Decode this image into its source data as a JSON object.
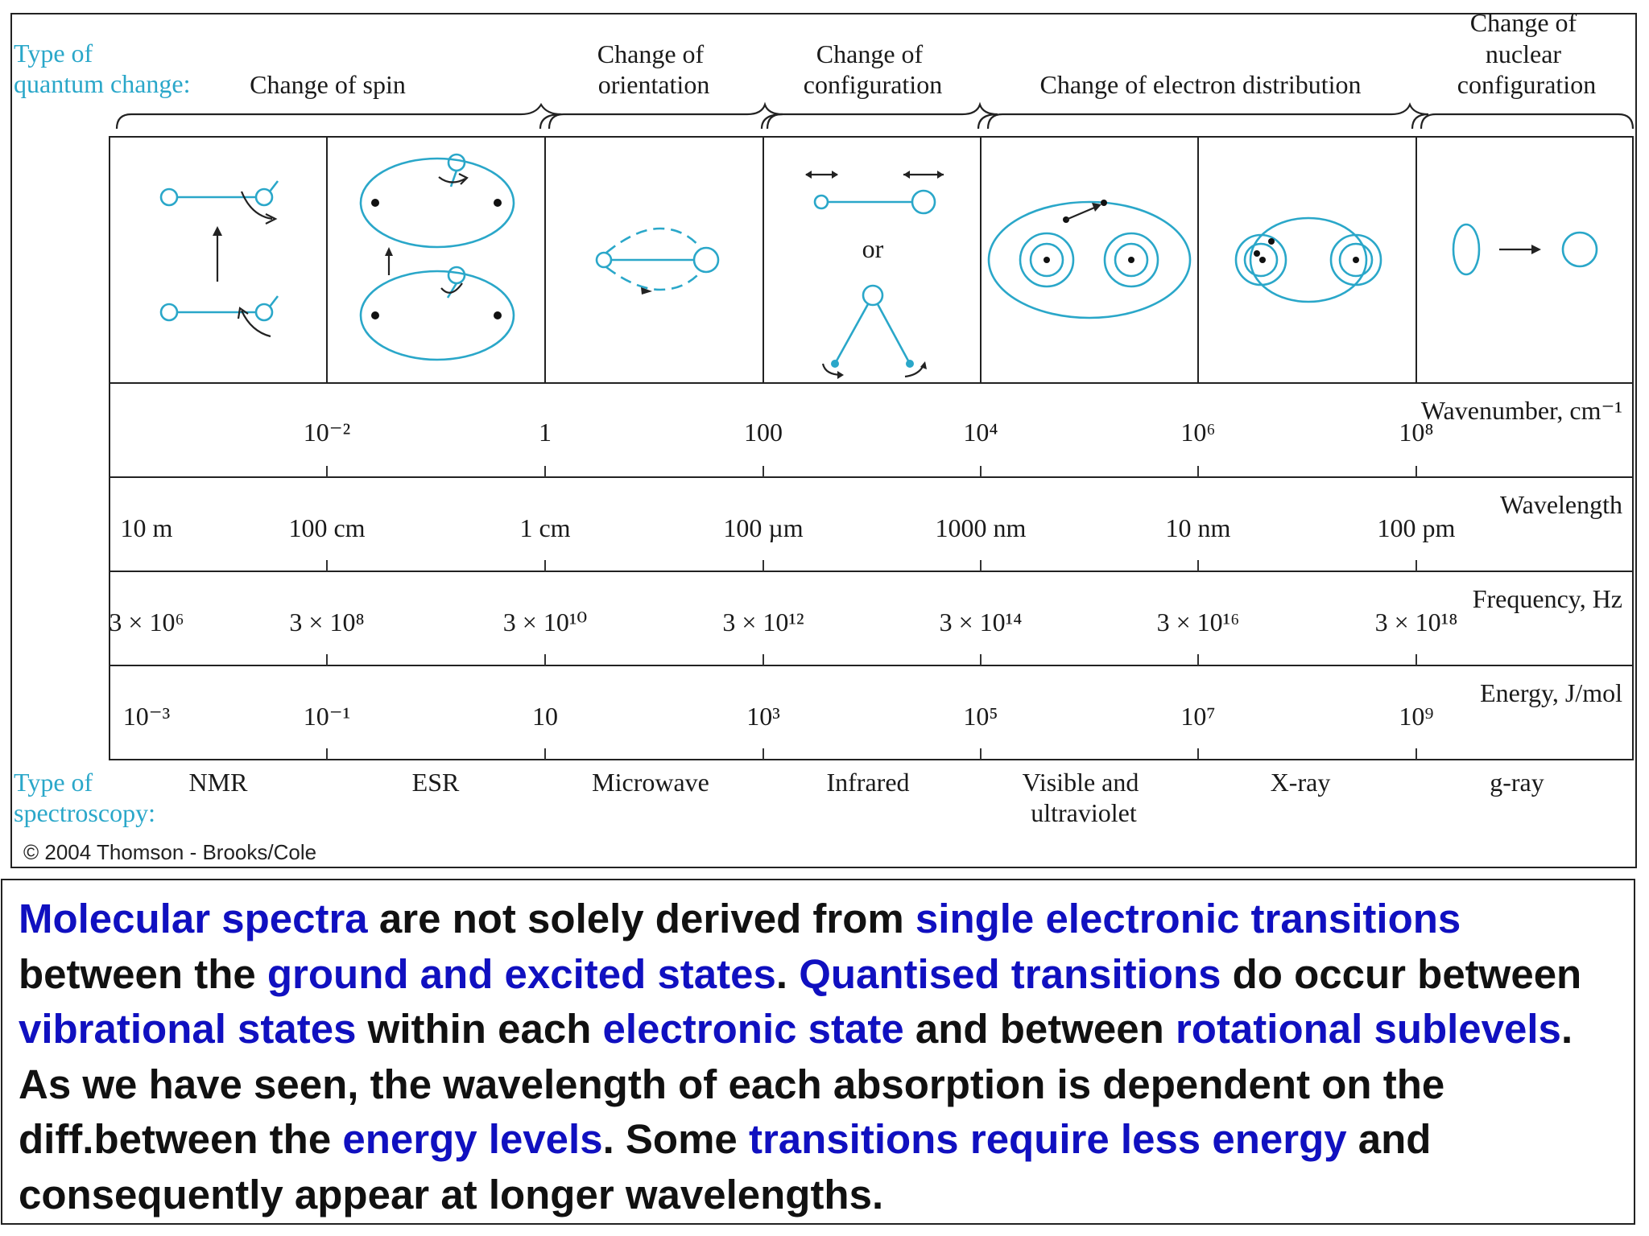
{
  "figure": {
    "type_of_change_label": [
      "Type of",
      "quantum change:"
    ],
    "type_of_spectroscopy_label": [
      "Type of",
      "spectroscopy:"
    ],
    "credit": "© 2004 Thomson - Brooks/Cole",
    "change_categories": [
      {
        "lines": [
          "Change of spin"
        ]
      },
      {
        "lines": [
          "Change of",
          "orientation"
        ]
      },
      {
        "lines": [
          "Change of",
          "configuration"
        ]
      },
      {
        "lines": [
          "Change of electron distribution"
        ]
      },
      {
        "lines": [
          "Change of",
          "nuclear",
          "configuration"
        ]
      }
    ],
    "or_label": "or",
    "scales": [
      {
        "label": "Wavenumber, cm⁻¹",
        "ticks": [
          "10⁻²",
          "1",
          "100",
          "10⁴",
          "10⁶",
          "10⁸"
        ]
      },
      {
        "label": "Wavelength",
        "ticks": [
          "10 m",
          "100 cm",
          "1 cm",
          "100 µm",
          "1000 nm",
          "10 nm",
          "100 pm"
        ]
      },
      {
        "label": "Frequency, Hz",
        "ticks": [
          "3 × 10⁶",
          "3 × 10⁸",
          "3 × 10¹⁰",
          "3 × 10¹²",
          "3 × 10¹⁴",
          "3 × 10¹⁶",
          "3 × 10¹⁸"
        ]
      },
      {
        "label": "Energy, J/mol",
        "ticks": [
          "10⁻³",
          "10⁻¹",
          "10",
          "10³",
          "10⁵",
          "10⁷",
          "10⁹"
        ]
      }
    ],
    "spectroscopy_types": [
      {
        "lines": [
          "NMR"
        ]
      },
      {
        "lines": [
          "ESR"
        ]
      },
      {
        "lines": [
          "Microwave"
        ]
      },
      {
        "lines": [
          "Infrared"
        ]
      },
      {
        "lines": [
          "Visible and",
          "ultraviolet"
        ]
      },
      {
        "lines": [
          "X-ray"
        ]
      },
      {
        "lines": [
          "g-ray"
        ]
      }
    ]
  },
  "caption": {
    "segments": [
      {
        "text": "Molecular spectra",
        "highlight": true
      },
      {
        "text": " are not solely derived from ",
        "highlight": false
      },
      {
        "text": "single electronic transitions",
        "highlight": true
      },
      {
        "text": " between the ",
        "highlight": false
      },
      {
        "text": "ground and excited states",
        "highlight": true
      },
      {
        "text": ". ",
        "highlight": false
      },
      {
        "text": "Quantised transitions",
        "highlight": true
      },
      {
        "text": " do occur between ",
        "highlight": false
      },
      {
        "text": "vibrational states",
        "highlight": true
      },
      {
        "text": " within each ",
        "highlight": false
      },
      {
        "text": "electronic state",
        "highlight": true
      },
      {
        "text": " and between ",
        "highlight": false
      },
      {
        "text": "rotational sublevels",
        "highlight": true
      },
      {
        "text": ". As we have seen, the wavelength of each absorption is dependent on the diff.between the ",
        "highlight": false
      },
      {
        "text": "energy levels",
        "highlight": true
      },
      {
        "text": ". Some ",
        "highlight": false
      },
      {
        "text": "transitions require less energy",
        "highlight": true
      },
      {
        "text": " and consequently appear at longer wavelengths.",
        "highlight": false
      }
    ]
  }
}
